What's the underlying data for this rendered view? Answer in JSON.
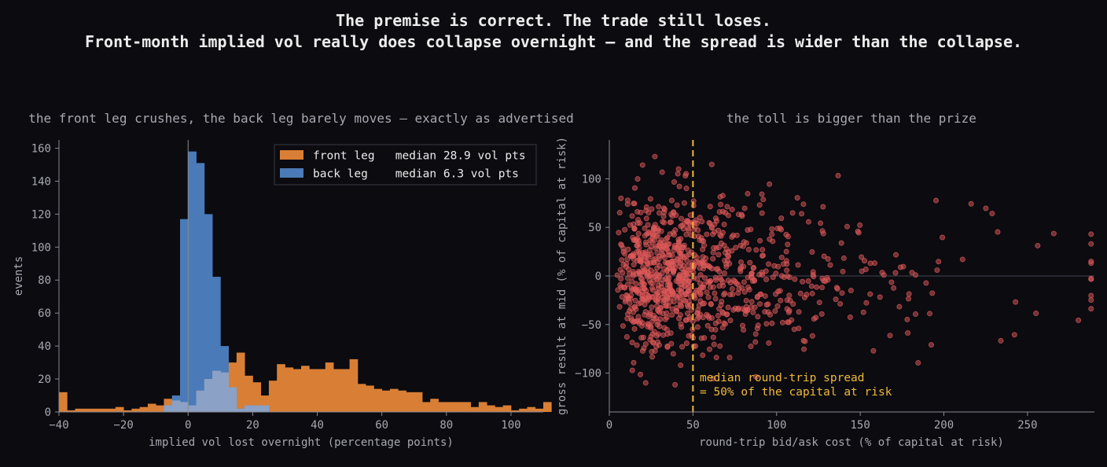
{
  "figure": {
    "title_line1": "The premise is correct. The trade still loses.",
    "title_line2": "Front-month implied vol really does collapse overnight — and the spread is wider than the collapse."
  },
  "chart_data": [
    {
      "type": "histogram",
      "title": "the front leg crushes, the back leg barely moves — exactly as advertised",
      "xlabel": "implied vol lost overnight (percentage points)",
      "ylabel": "events",
      "xlim": [
        -40,
        110
      ],
      "ylim": [
        0,
        165
      ],
      "xticks": [
        -40,
        -20,
        0,
        20,
        40,
        60,
        80,
        100
      ],
      "xtick_labels": [
        "−40",
        "−20",
        "0",
        "20",
        "40",
        "60",
        "80",
        "100"
      ],
      "yticks": [
        0,
        20,
        40,
        60,
        80,
        100,
        120,
        140,
        160
      ],
      "bin_width": 2.5,
      "legend_position": "upper-right",
      "series": [
        {
          "name": "front leg",
          "legend_label": "front leg   median 28.9 vol pts",
          "color": "#d97f35",
          "bin_start": -40,
          "counts": [
            12,
            1,
            2,
            2,
            2,
            2,
            2,
            3,
            1,
            2,
            3,
            5,
            4,
            8,
            7,
            6,
            4,
            13,
            20,
            25,
            24,
            30,
            36,
            22,
            18,
            10,
            19,
            29,
            27,
            26,
            28,
            26,
            26,
            30,
            26,
            26,
            32,
            17,
            16,
            14,
            13,
            14,
            13,
            12,
            12,
            6,
            8,
            6,
            6,
            6,
            6,
            3,
            6,
            4,
            3,
            4,
            1,
            2,
            3,
            2,
            6
          ]
        },
        {
          "name": "back leg",
          "legend_label": "back leg    median 6.3 vol pts",
          "color": "#4a7ab8",
          "bin_start": -7.5,
          "counts": [
            4,
            10,
            117,
            158,
            151,
            120,
            82,
            40,
            15,
            2,
            4,
            4,
            4
          ]
        }
      ],
      "overlap_color": "#8ba1c6",
      "reference_line_x": 0
    },
    {
      "type": "scatter",
      "title": "the toll is bigger than the prize",
      "xlabel": "round-trip bid/ask cost (% of capital at risk)",
      "ylabel": "gross result at mid (% of capital at risk)",
      "xlim": [
        0,
        290
      ],
      "ylim": [
        -140,
        140
      ],
      "xticks": [
        0,
        50,
        100,
        150,
        200,
        250
      ],
      "yticks": [
        -100,
        -50,
        0,
        50,
        100
      ],
      "ytick_labels": [
        "−100",
        "−50",
        "0",
        "50",
        "100"
      ],
      "point_color": "#e05a5a",
      "point_count": 1000,
      "median_line": {
        "x": 50,
        "color": "#f0b93a",
        "label_line1": "median round-trip spread",
        "label_line2": "= 50% of the capital at risk"
      }
    }
  ]
}
